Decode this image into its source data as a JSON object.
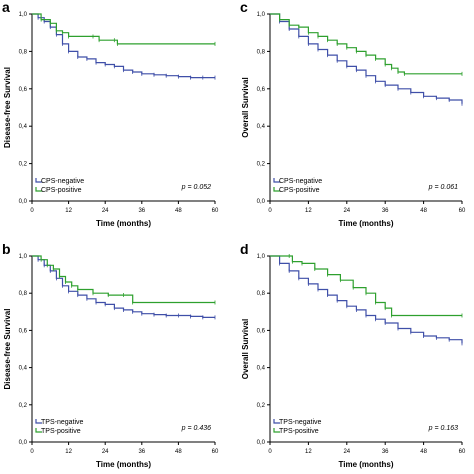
{
  "chart_data": [
    {
      "type": "line",
      "panel_label": "a",
      "xlabel": "Time (months)",
      "ylabel": "Disease-free Survival",
      "xlim": [
        0,
        60
      ],
      "ylim": [
        0,
        1
      ],
      "xticks": [
        "0",
        "12",
        "24",
        "36",
        "48",
        "60"
      ],
      "yticks": [
        "0,0",
        "0,2",
        "0,4",
        "0,6",
        "0,8",
        "1,0"
      ],
      "pvalue": "p = 0.052",
      "legend_position": "bottom-left",
      "series": [
        {
          "name": "CPS-negative",
          "color": "#3f4fa8",
          "points": [
            [
              0,
              1.0
            ],
            [
              2,
              0.98
            ],
            [
              4,
              0.96
            ],
            [
              6,
              0.93
            ],
            [
              8,
              0.89
            ],
            [
              10,
              0.84
            ],
            [
              12,
              0.8
            ],
            [
              15,
              0.77
            ],
            [
              18,
              0.76
            ],
            [
              21,
              0.74
            ],
            [
              24,
              0.73
            ],
            [
              27,
              0.72
            ],
            [
              30,
              0.7
            ],
            [
              33,
              0.69
            ],
            [
              36,
              0.68
            ],
            [
              40,
              0.675
            ],
            [
              44,
              0.67
            ],
            [
              48,
              0.665
            ],
            [
              52,
              0.66
            ],
            [
              56,
              0.66
            ],
            [
              60,
              0.66
            ]
          ]
        },
        {
          "name": "CPS-positive",
          "color": "#2ea02e",
          "points": [
            [
              0,
              1.0
            ],
            [
              3,
              0.97
            ],
            [
              6,
              0.95
            ],
            [
              8,
              0.91
            ],
            [
              10,
              0.9
            ],
            [
              12,
              0.88
            ],
            [
              20,
              0.88
            ],
            [
              22,
              0.86
            ],
            [
              27,
              0.86
            ],
            [
              28,
              0.84
            ],
            [
              60,
              0.84
            ]
          ]
        }
      ]
    },
    {
      "type": "line",
      "panel_label": "c",
      "xlabel": "Time (months)",
      "ylabel": "Overall Survival",
      "xlim": [
        0,
        60
      ],
      "ylim": [
        0,
        1
      ],
      "xticks": [
        "0",
        "12",
        "24",
        "36",
        "48",
        "60"
      ],
      "yticks": [
        "0,0",
        "0,2",
        "0,4",
        "0,6",
        "0,8",
        "1,0"
      ],
      "pvalue": "p = 0.061",
      "legend_position": "bottom-left",
      "series": [
        {
          "name": "CPS-negative",
          "color": "#3f4fa8",
          "points": [
            [
              0,
              1.0
            ],
            [
              3,
              0.96
            ],
            [
              6,
              0.92
            ],
            [
              9,
              0.88
            ],
            [
              12,
              0.84
            ],
            [
              15,
              0.81
            ],
            [
              18,
              0.78
            ],
            [
              21,
              0.75
            ],
            [
              24,
              0.72
            ],
            [
              27,
              0.7
            ],
            [
              30,
              0.67
            ],
            [
              33,
              0.64
            ],
            [
              36,
              0.62
            ],
            [
              40,
              0.6
            ],
            [
              44,
              0.58
            ],
            [
              48,
              0.56
            ],
            [
              52,
              0.55
            ],
            [
              56,
              0.54
            ],
            [
              60,
              0.52
            ]
          ]
        },
        {
          "name": "CPS-positive",
          "color": "#2ea02e",
          "points": [
            [
              0,
              1.0
            ],
            [
              3,
              0.97
            ],
            [
              6,
              0.94
            ],
            [
              9,
              0.93
            ],
            [
              12,
              0.9
            ],
            [
              15,
              0.88
            ],
            [
              18,
              0.86
            ],
            [
              21,
              0.84
            ],
            [
              24,
              0.82
            ],
            [
              27,
              0.8
            ],
            [
              30,
              0.78
            ],
            [
              33,
              0.76
            ],
            [
              36,
              0.73
            ],
            [
              38,
              0.71
            ],
            [
              40,
              0.69
            ],
            [
              42,
              0.68
            ],
            [
              60,
              0.68
            ]
          ]
        }
      ]
    },
    {
      "type": "line",
      "panel_label": "b",
      "xlabel": "Time (months)",
      "ylabel": "Disease-free Survival",
      "xlim": [
        0,
        60
      ],
      "ylim": [
        0,
        1
      ],
      "xticks": [
        "0",
        "12",
        "24",
        "36",
        "48",
        "60"
      ],
      "yticks": [
        "0,0",
        "0,2",
        "0,4",
        "0,6",
        "0,8",
        "1,0"
      ],
      "pvalue": "p = 0.436",
      "legend_position": "bottom-left",
      "series": [
        {
          "name": "TPS-negative",
          "color": "#3f4fa8",
          "points": [
            [
              0,
              1.0
            ],
            [
              2,
              0.98
            ],
            [
              4,
              0.95
            ],
            [
              6,
              0.92
            ],
            [
              8,
              0.88
            ],
            [
              10,
              0.84
            ],
            [
              12,
              0.81
            ],
            [
              15,
              0.79
            ],
            [
              18,
              0.77
            ],
            [
              21,
              0.75
            ],
            [
              24,
              0.74
            ],
            [
              27,
              0.72
            ],
            [
              30,
              0.71
            ],
            [
              33,
              0.7
            ],
            [
              36,
              0.69
            ],
            [
              40,
              0.685
            ],
            [
              44,
              0.68
            ],
            [
              48,
              0.68
            ],
            [
              52,
              0.675
            ],
            [
              56,
              0.67
            ],
            [
              60,
              0.67
            ]
          ]
        },
        {
          "name": "TPS-positive",
          "color": "#2ea02e",
          "points": [
            [
              0,
              1.0
            ],
            [
              3,
              0.98
            ],
            [
              5,
              0.95
            ],
            [
              7,
              0.93
            ],
            [
              9,
              0.89
            ],
            [
              11,
              0.86
            ],
            [
              13,
              0.84
            ],
            [
              15,
              0.82
            ],
            [
              20,
              0.8
            ],
            [
              25,
              0.79
            ],
            [
              30,
              0.79
            ],
            [
              33,
              0.75
            ],
            [
              60,
              0.75
            ]
          ]
        }
      ]
    },
    {
      "type": "line",
      "panel_label": "d",
      "xlabel": "Time (months)",
      "ylabel": "Overall Survival",
      "xlim": [
        0,
        60
      ],
      "ylim": [
        0,
        1
      ],
      "xticks": [
        "0",
        "12",
        "24",
        "36",
        "48",
        "60"
      ],
      "yticks": [
        "0,0",
        "0,2",
        "0,4",
        "0,6",
        "0,8",
        "1,0"
      ],
      "pvalue": "p = 0.163",
      "legend_position": "bottom-left",
      "series": [
        {
          "name": "TPS-negative",
          "color": "#3f4fa8",
          "points": [
            [
              0,
              1.0
            ],
            [
              3,
              0.96
            ],
            [
              6,
              0.92
            ],
            [
              9,
              0.88
            ],
            [
              12,
              0.85
            ],
            [
              15,
              0.82
            ],
            [
              18,
              0.79
            ],
            [
              21,
              0.76
            ],
            [
              24,
              0.73
            ],
            [
              27,
              0.71
            ],
            [
              30,
              0.68
            ],
            [
              33,
              0.66
            ],
            [
              36,
              0.64
            ],
            [
              40,
              0.61
            ],
            [
              44,
              0.59
            ],
            [
              48,
              0.57
            ],
            [
              52,
              0.56
            ],
            [
              56,
              0.55
            ],
            [
              60,
              0.53
            ]
          ]
        },
        {
          "name": "TPS-positive",
          "color": "#2ea02e",
          "points": [
            [
              0,
              1.0
            ],
            [
              6,
              1.0
            ],
            [
              7,
              0.97
            ],
            [
              10,
              0.96
            ],
            [
              14,
              0.93
            ],
            [
              18,
              0.9
            ],
            [
              22,
              0.87
            ],
            [
              26,
              0.83
            ],
            [
              30,
              0.8
            ],
            [
              33,
              0.75
            ],
            [
              36,
              0.72
            ],
            [
              38,
              0.68
            ],
            [
              60,
              0.68
            ]
          ]
        }
      ]
    }
  ]
}
